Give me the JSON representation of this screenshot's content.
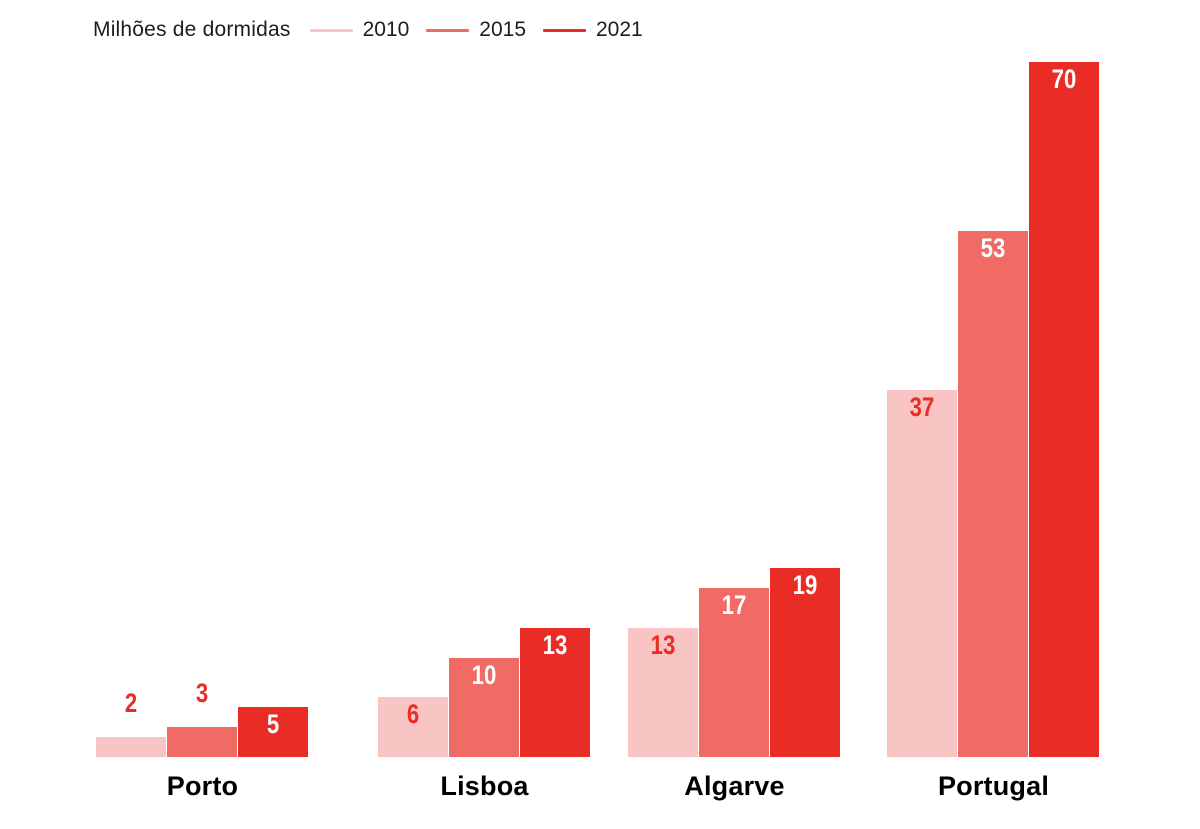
{
  "background": "#ffffff",
  "text_color": "#1d1d1b",
  "category_label_color": "#000000",
  "value_label_red": "#e92c25",
  "value_label_white": "#ffffff",
  "series_colors": [
    "#f9c4c4",
    "#f06a66",
    "#e92c25"
  ],
  "legend": {
    "items": [
      {
        "label": "2010",
        "color": "#f9c4c4"
      },
      {
        "label": "2015",
        "color": "#f06a66"
      },
      {
        "label": "2021",
        "color": "#e92c25"
      }
    ]
  },
  "chart_data": {
    "type": "bar",
    "title": "Milhões de dormidas",
    "categories": [
      "Porto",
      "Lisboa",
      "Algarve",
      "Portugal"
    ],
    "series": [
      {
        "name": "2010",
        "color": "#f9c4c4",
        "values": [
          2,
          6,
          13,
          37
        ]
      },
      {
        "name": "2015",
        "color": "#f06a66",
        "values": [
          3,
          10,
          17,
          53
        ]
      },
      {
        "name": "2021",
        "color": "#e92c25",
        "values": [
          5,
          13,
          19,
          70
        ]
      }
    ],
    "ylim": [
      0,
      70
    ],
    "grid": false,
    "axes_visible": false,
    "legend_position": "top",
    "value_labels_shown": true
  }
}
